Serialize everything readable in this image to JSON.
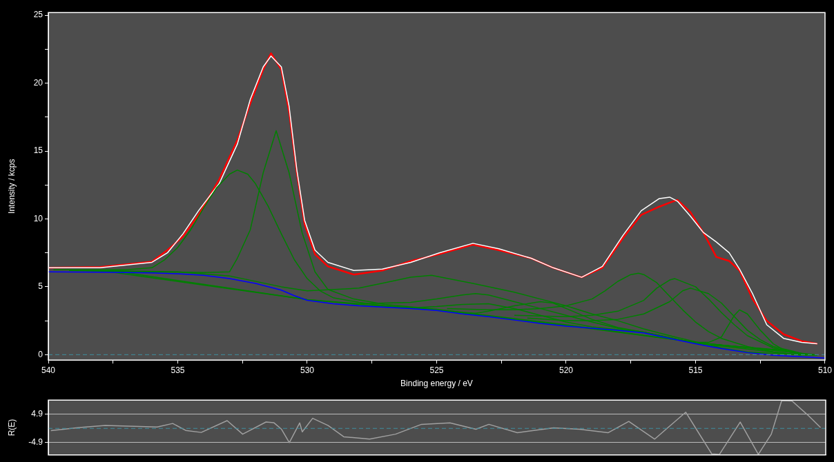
{
  "chart_data": [
    {
      "type": "line",
      "xlabel": "Binding energy / eV",
      "ylabel": "Intensity / kcps",
      "xlim": [
        540,
        510
      ],
      "xticks": [
        540,
        {
          "value": 537.5,
          "label": null
        },
        535,
        {
          "value": 532.5,
          "label": null
        },
        530,
        {
          "value": 527.5,
          "label": null
        },
        525,
        {
          "value": 522.5,
          "label": null
        },
        520,
        {
          "value": 517.5,
          "label": null
        },
        515,
        {
          "value": 512.5,
          "label": null
        },
        510
      ],
      "ylim": [
        -0.4,
        25.2
      ],
      "yticks": [
        0,
        {
          "value": 2.5,
          "label": null
        },
        5,
        {
          "value": 7.5,
          "label": null
        },
        10,
        {
          "value": 12.5,
          "label": null
        },
        15,
        {
          "value": 17.5,
          "label": null
        },
        20,
        {
          "value": 22.5,
          "label": null
        },
        25
      ],
      "ref_lines": [
        {
          "axis": "y",
          "value": 0,
          "color": "#3f8f9f",
          "line_style": "dashed"
        }
      ],
      "series": [
        {
          "color": "#0000ff",
          "x": [
            540,
            538,
            536,
            535,
            534,
            533,
            532,
            531,
            530.5,
            530,
            529,
            528,
            527,
            526,
            525,
            524,
            523,
            522,
            521,
            520,
            519,
            518,
            517,
            516,
            515,
            514,
            513,
            512,
            511,
            510.0
          ],
          "values": [
            6.1,
            6.08,
            6.02,
            5.96,
            5.85,
            5.6,
            5.25,
            4.75,
            4.35,
            4.0,
            3.75,
            3.6,
            3.5,
            3.4,
            3.25,
            3.0,
            2.8,
            2.55,
            2.3,
            2.1,
            1.95,
            1.8,
            1.6,
            1.2,
            0.8,
            0.45,
            0.15,
            -0.05,
            -0.15,
            -0.25
          ]
        },
        {
          "color": "#008000",
          "x": [
            539.8,
            537,
            536,
            535.5,
            535,
            534.5,
            534,
            533.5,
            533,
            532.7,
            532.3,
            532,
            531.5,
            531,
            530.5,
            530,
            529.5,
            529,
            528,
            527,
            525,
            522,
            520,
            515,
            510.4
          ],
          "values": [
            6.25,
            6.25,
            6.4,
            7.0,
            7.9,
            9.2,
            10.8,
            12.3,
            13.3,
            13.6,
            13.3,
            12.6,
            10.9,
            8.9,
            7.0,
            5.6,
            4.7,
            4.2,
            3.85,
            3.6,
            3.3,
            2.6,
            2.15,
            0.9,
            0.0
          ]
        },
        {
          "color": "#008000",
          "x": [
            539.2,
            534,
            533,
            532.7,
            532.2,
            531.7,
            531.2,
            530.7,
            530.2,
            529.7,
            529.2,
            528.2,
            527,
            525,
            520,
            515,
            511.2
          ],
          "values": [
            6.2,
            6.05,
            6.1,
            7.1,
            9.2,
            13.4,
            16.5,
            13.4,
            9.0,
            6.1,
            4.8,
            4.1,
            3.7,
            3.35,
            2.2,
            0.9,
            0.2
          ]
        },
        {
          "color": "#008000",
          "x": [
            538.6,
            535,
            533,
            531,
            530,
            528,
            527,
            526,
            525.2,
            523.6,
            522,
            521,
            520,
            519,
            518,
            517,
            516,
            515,
            514,
            513,
            511,
            510.7
          ],
          "values": [
            6.2,
            6.1,
            5.8,
            5.0,
            4.7,
            4.9,
            5.3,
            5.7,
            5.84,
            5.25,
            4.6,
            4.1,
            3.6,
            3.0,
            2.5,
            1.9,
            1.4,
            0.95,
            0.5,
            0.2,
            0.0,
            -0.05
          ]
        },
        {
          "color": "#008000",
          "x": [
            538.0,
            530,
            528,
            526,
            525,
            524,
            523.5,
            523,
            522,
            521,
            520,
            519,
            518,
            517,
            515,
            511.6
          ],
          "values": [
            6.2,
            4.05,
            3.75,
            3.85,
            4.1,
            4.4,
            4.5,
            4.4,
            3.9,
            3.4,
            2.9,
            2.4,
            1.95,
            1.65,
            0.85,
            0.3
          ]
        },
        {
          "color": "#008000",
          "x": [
            537.4,
            530,
            528,
            526,
            525,
            524,
            523,
            522,
            521,
            520,
            519,
            518,
            517,
            515,
            510.9
          ],
          "values": [
            6.15,
            4.05,
            3.7,
            3.45,
            3.55,
            3.7,
            3.75,
            3.4,
            2.9,
            2.4,
            2.05,
            1.85,
            1.65,
            0.85,
            -0.05
          ]
        },
        {
          "color": "#008000",
          "x": [
            525,
            524,
            523.5,
            523,
            522,
            521,
            520.5,
            520,
            519,
            518,
            517,
            515,
            511.4
          ],
          "values": [
            3.3,
            3.1,
            3.05,
            3.2,
            3.6,
            3.9,
            3.8,
            3.4,
            2.6,
            2.0,
            1.65,
            0.85,
            0.3
          ]
        },
        {
          "color": "#008000",
          "x": [
            524.6,
            523,
            522,
            521,
            520,
            519,
            518.5,
            518,
            517.5,
            517.2,
            517,
            516.5,
            516,
            515.5,
            515,
            514.5,
            514,
            513,
            512,
            511,
            510.3
          ],
          "values": [
            3.4,
            3.3,
            3.3,
            3.4,
            3.6,
            4.1,
            4.7,
            5.4,
            5.9,
            6.0,
            5.9,
            5.3,
            4.3,
            3.3,
            2.4,
            1.7,
            1.2,
            0.6,
            0.2,
            0.0,
            -0.05
          ]
        },
        {
          "color": "#008000",
          "x": [
            522,
            520,
            519,
            518,
            517,
            516.5,
            516,
            515.8,
            515,
            514.5,
            514,
            513.5,
            513,
            512,
            511,
            510.6
          ],
          "values": [
            2.9,
            2.8,
            2.9,
            3.2,
            4.0,
            4.9,
            5.5,
            5.6,
            5.0,
            4.1,
            3.1,
            2.2,
            1.4,
            0.5,
            0.1,
            0.0
          ]
        },
        {
          "color": "#008000",
          "x": [
            521.5,
            520,
            519,
            518,
            517,
            516,
            515.5,
            515.2,
            514.5,
            514,
            513.5,
            513,
            512.5,
            512,
            511,
            510.8
          ],
          "values": [
            2.7,
            2.5,
            2.5,
            2.6,
            3.0,
            3.9,
            4.7,
            4.9,
            4.5,
            3.8,
            2.8,
            1.8,
            1.1,
            0.6,
            0.15,
            0.0
          ]
        },
        {
          "color": "#008000",
          "x": [
            517,
            516,
            515,
            514.5,
            514,
            513.5,
            513.3,
            513,
            512.5,
            512,
            511.5,
            511,
            510.5
          ],
          "values": [
            1.65,
            1.2,
            0.9,
            0.9,
            1.3,
            2.9,
            3.3,
            3.0,
            1.8,
            0.8,
            0.25,
            0.05,
            -0.05
          ]
        },
        {
          "color": "#ffffff",
          "x": [
            540,
            538,
            536,
            535.4,
            534.8,
            534.2,
            533.4,
            532.7,
            532.2,
            531.7,
            531.4,
            531.0,
            530.7,
            530.4,
            530.1,
            529.7,
            529.2,
            528.2,
            527.1,
            526,
            524.9,
            523.6,
            522.6,
            521.35,
            520.5,
            519.4,
            518.6,
            517.8,
            517.1,
            516.4,
            516.0,
            515.7,
            515.2,
            514.7,
            514.2,
            513.7,
            513.3,
            512.8,
            512.25,
            511.6,
            510.9,
            510.3
          ],
          "values": [
            6.4,
            6.4,
            6.8,
            7.5,
            8.9,
            10.6,
            12.6,
            15.5,
            18.8,
            21.2,
            22.0,
            21.2,
            18.3,
            13.6,
            9.9,
            7.7,
            6.8,
            6.2,
            6.3,
            6.8,
            7.5,
            8.2,
            7.8,
            7.1,
            6.4,
            5.7,
            6.5,
            8.8,
            10.6,
            11.5,
            11.6,
            11.3,
            10.2,
            9.0,
            8.3,
            7.5,
            6.3,
            4.5,
            2.2,
            1.2,
            0.9,
            0.8
          ]
        },
        {
          "color": "#ff0000",
          "x": [
            540,
            538,
            536,
            535.4,
            534.8,
            534.2,
            533.4,
            532.7,
            532.2,
            531.7,
            531.4,
            531.0,
            530.7,
            530.4,
            530.1,
            529.7,
            529.2,
            528.2,
            527.1,
            526,
            524.9,
            523.6,
            522.6,
            521.35,
            520.5,
            519.4,
            518.6,
            517.8,
            517.1,
            516.4,
            516.0,
            515.7,
            515.2,
            514.7,
            514.2,
            513.7,
            513.3,
            512.8,
            512.25,
            511.6,
            510.9,
            510.3
          ],
          "values": [
            6.4,
            6.45,
            6.85,
            7.7,
            8.7,
            10.3,
            12.9,
            15.8,
            18.5,
            21.0,
            22.2,
            21.0,
            17.9,
            13.4,
            9.6,
            7.4,
            6.5,
            5.9,
            6.2,
            6.9,
            7.4,
            8.1,
            7.7,
            7.1,
            6.4,
            5.7,
            6.4,
            8.6,
            10.3,
            10.9,
            11.2,
            11.4,
            10.5,
            9.0,
            7.2,
            6.9,
            6.2,
            4.1,
            2.5,
            1.5,
            1.0,
            0.8
          ]
        }
      ]
    },
    {
      "type": "line",
      "ylabel": "R(E)",
      "xlim": [
        540,
        510
      ],
      "ylim": [
        -9.2,
        9.8
      ],
      "yticks": [
        -4.9,
        4.9
      ],
      "grid": "y",
      "tick_labels": "y",
      "ref_lines": [
        {
          "axis": "y",
          "value": 0,
          "color": "#3f8f9f",
          "line_style": "dashed"
        }
      ],
      "series": [
        {
          "color": "#a0a0a0",
          "x": [
            539.9,
            538.8,
            537.8,
            535.8,
            535.2,
            534.7,
            534.1,
            533.1,
            532.5,
            531.6,
            531.3,
            531.0,
            530.7,
            530.3,
            530.2,
            529.8,
            529.2,
            528.6,
            527.6,
            526.6,
            525.6,
            524.5,
            523.5,
            523.0,
            521.9,
            520.5,
            519.5,
            518.4,
            517.6,
            516.6,
            515.4,
            514.4,
            514.1,
            513.3,
            512.6,
            512.1,
            511.7,
            511.3,
            510.7,
            510.2
          ],
          "values": [
            -0.8,
            0.3,
            1.0,
            0.5,
            1.7,
            -0.7,
            -1.4,
            2.7,
            -2.0,
            2.2,
            2.0,
            -0.3,
            -4.9,
            1.9,
            -1.2,
            3.5,
            1.0,
            -2.9,
            -3.7,
            -2.0,
            1.4,
            1.9,
            -0.3,
            1.4,
            -1.5,
            0.2,
            -0.3,
            -1.5,
            2.4,
            -3.7,
            5.6,
            -8.8,
            -9.0,
            2.2,
            -9.0,
            -2.0,
            9.6,
            9.5,
            4.7,
            0.3
          ]
        }
      ]
    }
  ]
}
